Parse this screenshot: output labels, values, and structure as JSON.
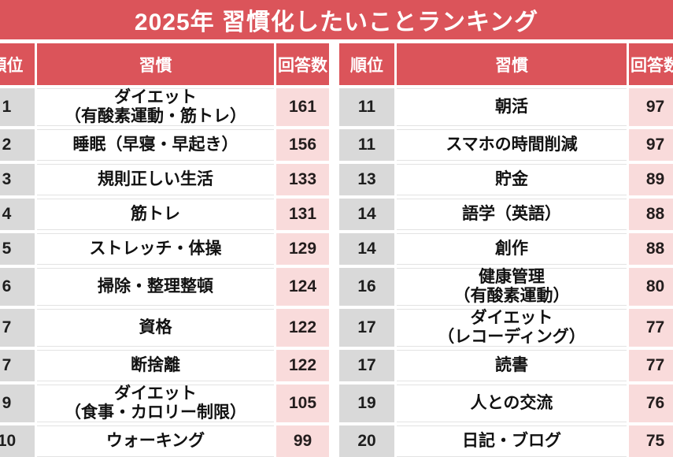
{
  "title": "2025年 習慣化したいことランキング",
  "columns": {
    "rank": "順位",
    "habit": "習慣",
    "count": "回答数"
  },
  "colors": {
    "red": "#DB545A",
    "pink": "#F9DBDB",
    "gray": "#D9D9D9"
  },
  "tables": [
    {
      "rows": [
        {
          "rank": "1",
          "habit": [
            "ダイエット",
            "（有酸素運動・筋トレ）"
          ],
          "count": "161"
        },
        {
          "rank": "2",
          "habit": "睡眠（早寝・早起き）",
          "count": "156"
        },
        {
          "rank": "3",
          "habit": "規則正しい生活",
          "count": "133"
        },
        {
          "rank": "4",
          "habit": "筋トレ",
          "count": "131"
        },
        {
          "rank": "5",
          "habit": "ストレッチ・体操",
          "count": "129"
        },
        {
          "rank": "6",
          "habit": "掃除・整理整頓",
          "count": "124"
        },
        {
          "rank": "7",
          "habit": "資格",
          "count": "122"
        },
        {
          "rank": "7",
          "habit": "断捨離",
          "count": "122"
        },
        {
          "rank": "9",
          "habit": [
            "ダイエット",
            "（食事・カロリー制限）"
          ],
          "count": "105"
        },
        {
          "rank": "10",
          "habit": "ウォーキング",
          "count": "99"
        }
      ]
    },
    {
      "rows": [
        {
          "rank": "11",
          "habit": "朝活",
          "count": "97"
        },
        {
          "rank": "11",
          "habit": "スマホの時間削減",
          "count": "97"
        },
        {
          "rank": "13",
          "habit": "貯金",
          "count": "89"
        },
        {
          "rank": "14",
          "habit": "語学（英語）",
          "count": "88"
        },
        {
          "rank": "14",
          "habit": "創作",
          "count": "88"
        },
        {
          "rank": "16",
          "habit": [
            "健康管理",
            "（有酸素運動）"
          ],
          "count": "80"
        },
        {
          "rank": "17",
          "habit": [
            "ダイエット",
            "（レコーディング）"
          ],
          "count": "77"
        },
        {
          "rank": "17",
          "habit": "読書",
          "count": "77"
        },
        {
          "rank": "19",
          "habit": "人との交流",
          "count": "76"
        },
        {
          "rank": "20",
          "habit": "日記・ブログ",
          "count": "75"
        }
      ]
    }
  ],
  "chart_data": {
    "type": "table",
    "title": "2025年 習慣化したいことランキング",
    "columns": [
      "順位",
      "習慣",
      "回答数"
    ],
    "rows": [
      [
        "1",
        "ダイエット（有酸素運動・筋トレ）",
        161
      ],
      [
        "2",
        "睡眠（早寝・早起き）",
        156
      ],
      [
        "3",
        "規則正しい生活",
        133
      ],
      [
        "4",
        "筋トレ",
        131
      ],
      [
        "5",
        "ストレッチ・体操",
        129
      ],
      [
        "6",
        "掃除・整理整頓",
        124
      ],
      [
        "7",
        "資格",
        122
      ],
      [
        "7",
        "断捨離",
        122
      ],
      [
        "9",
        "ダイエット（食事・カロリー制限）",
        105
      ],
      [
        "10",
        "ウォーキング",
        99
      ],
      [
        "11",
        "朝活",
        97
      ],
      [
        "11",
        "スマホの時間削減",
        97
      ],
      [
        "13",
        "貯金",
        89
      ],
      [
        "14",
        "語学（英語）",
        88
      ],
      [
        "14",
        "創作",
        88
      ],
      [
        "16",
        "健康管理（有酸素運動）",
        80
      ],
      [
        "17",
        "ダイエット（レコーディング）",
        77
      ],
      [
        "17",
        "読書",
        77
      ],
      [
        "19",
        "人との交流",
        76
      ],
      [
        "20",
        "日記・ブログ",
        75
      ]
    ]
  }
}
